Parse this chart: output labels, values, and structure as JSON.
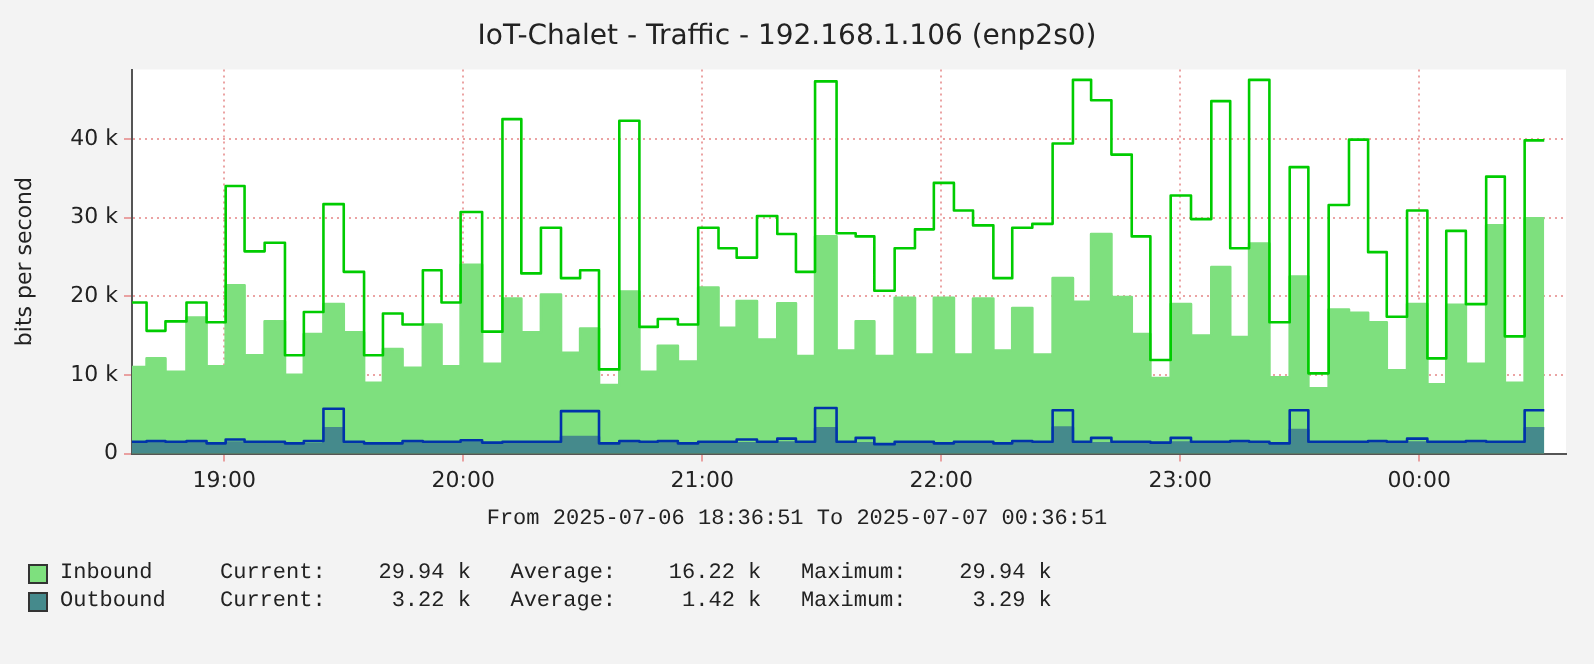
{
  "chart_data": {
    "type": "step",
    "title": "IoT-Chalet - Traffic - 192.168.1.106 (enp2s0)",
    "ylabel": "bits per second",
    "x": [
      18.614,
      18.675,
      18.754,
      18.842,
      18.926,
      19.006,
      19.085,
      19.169,
      19.254,
      19.333,
      19.415,
      19.5,
      19.585,
      19.664,
      19.746,
      19.831,
      19.909,
      19.989,
      20.079,
      20.164,
      20.243,
      20.325,
      20.409,
      20.489,
      20.568,
      20.653,
      20.737,
      20.814,
      20.898,
      20.983,
      21.068,
      21.144,
      21.229,
      21.314,
      21.392,
      21.472,
      21.562,
      21.642,
      21.72,
      21.805,
      21.89,
      21.969,
      22.053,
      22.133,
      22.218,
      22.297,
      22.381,
      22.466,
      22.551,
      22.627,
      22.712,
      22.797,
      22.875,
      22.96,
      23.045,
      23.13,
      23.209,
      23.288,
      23.373,
      23.458,
      23.536,
      23.621,
      23.706,
      23.786,
      23.864,
      23.949,
      24.034,
      24.113,
      24.195,
      24.28,
      24.358,
      24.441,
      24.523
    ],
    "series": [
      {
        "name": "Inbound",
        "type": "area",
        "color": "#7ee07e",
        "x": [
          18.614,
          18.675,
          18.675,
          18.754,
          18.754,
          18.842,
          18.842,
          18.926,
          18.926,
          19.006,
          19.006,
          19.085,
          19.085,
          19.169,
          19.169,
          19.254,
          19.254,
          19.333,
          19.333,
          19.415,
          19.415,
          19.5,
          19.5,
          19.585,
          19.585,
          19.664,
          19.664,
          19.746,
          19.746,
          19.831,
          19.831,
          19.909,
          19.909,
          19.989,
          19.989,
          20.079,
          20.079,
          20.164,
          20.164,
          20.243,
          20.243,
          20.325,
          20.325,
          20.409,
          20.409,
          20.489,
          20.489,
          20.568,
          20.568,
          20.653,
          20.653,
          20.737,
          20.737,
          20.814,
          20.814,
          20.898,
          20.898,
          20.983,
          20.983,
          21.068,
          21.068,
          21.144,
          21.144,
          21.229,
          21.229,
          21.314,
          21.314,
          21.392,
          21.392,
          21.472,
          21.472,
          21.562,
          21.562,
          21.642,
          21.642,
          21.72,
          21.72,
          21.805,
          21.805,
          21.89,
          21.89,
          21.969,
          21.969,
          22.053,
          22.053,
          22.133,
          22.133,
          22.218,
          22.218,
          22.297,
          22.297,
          22.381,
          22.381,
          22.466,
          22.466,
          22.551,
          22.551,
          22.627,
          22.627,
          22.712,
          22.712,
          22.797,
          22.797,
          22.875,
          22.875,
          22.96,
          22.96,
          23.045,
          23.045,
          23.13,
          23.13,
          23.209,
          23.209,
          23.288,
          23.288,
          23.373,
          23.373,
          23.458,
          23.458,
          23.536,
          23.536,
          23.621,
          23.621,
          23.706,
          23.706,
          23.786,
          23.786,
          23.864,
          23.864,
          23.949,
          23.949,
          24.034,
          24.034,
          24.113,
          24.113,
          24.195,
          24.195,
          24.28,
          24.28,
          24.358,
          24.358,
          24.441,
          24.441,
          24.523
        ],
        "values": [
          11000,
          11000,
          12100,
          12100,
          10400,
          10400,
          17300,
          17300,
          11100,
          11100,
          21400,
          21400,
          12500,
          12500,
          16800,
          16800,
          10000,
          10000,
          15200,
          15200,
          19000,
          19000,
          15400,
          15400,
          9000,
          9000,
          13300,
          13300,
          10900,
          10900,
          16400,
          16400,
          11100,
          11100,
          24000,
          24000,
          11400,
          11400,
          19700,
          19700,
          15400,
          15400,
          20200,
          20200,
          12800,
          12800,
          15900,
          15900,
          8700,
          8700,
          20600,
          20600,
          10400,
          10400,
          13700,
          13700,
          11700,
          11700,
          21100,
          21100,
          16000,
          16000,
          19400,
          19400,
          14500,
          14500,
          19100,
          19100,
          12400,
          12400,
          27600,
          27600,
          13100,
          13100,
          16800,
          16800,
          12400,
          12400,
          19800,
          19800,
          12600,
          12600,
          19800,
          19800,
          12600,
          12600,
          19700,
          19700,
          13100,
          13100,
          18500,
          18500,
          12600,
          12600,
          22300,
          22300,
          19300,
          19300,
          27900,
          27900,
          19900,
          19900,
          15200,
          15200,
          9600,
          9600,
          19000,
          19000,
          15000,
          15000,
          23700,
          23700,
          14800,
          14800,
          26700,
          26700,
          9700,
          9700,
          22500,
          22500,
          8300,
          8300,
          18300,
          18300,
          17900,
          17900,
          16700,
          16700,
          10600,
          10600,
          19000,
          19000,
          8800,
          8800,
          18900,
          18900,
          11400,
          11400,
          29000,
          29000,
          9000,
          9000,
          29900,
          29900
        ]
      },
      {
        "color": "#00cc00",
        "values": [
          19200,
          15600,
          16800,
          19200,
          16700,
          34000,
          25700,
          26800,
          12500,
          18000,
          31700,
          23100,
          12500,
          17800,
          16400,
          23300,
          19200,
          30700,
          15500,
          42500,
          22900,
          28700,
          22300,
          23300,
          10700,
          42300,
          16100,
          17100,
          16400,
          28700,
          26100,
          24900,
          30200,
          27900,
          23100,
          47300,
          28000,
          27600,
          20700,
          26100,
          28500,
          34400,
          30900,
          29000,
          22300,
          28700,
          29200,
          39400,
          47500,
          44900,
          38000,
          27600,
          11900,
          32800,
          29800,
          44800,
          26100,
          47500,
          16700,
          36400,
          10200,
          31600,
          39900,
          25600,
          17400,
          30900,
          12100,
          28300,
          19000,
          35200,
          14900,
          39800,
          39800
        ]
      },
      {
        "name": "Outbound",
        "type": "area",
        "color": "#458a8c",
        "x": [
          18.614,
          18.675,
          18.675,
          18.754,
          18.754,
          18.842,
          18.842,
          18.926,
          18.926,
          19.006,
          19.006,
          19.085,
          19.085,
          19.169,
          19.169,
          19.254,
          19.254,
          19.333,
          19.333,
          19.415,
          19.415,
          19.5,
          19.5,
          19.585,
          19.585,
          19.664,
          19.664,
          19.746,
          19.746,
          19.831,
          19.831,
          19.909,
          19.909,
          19.989,
          19.989,
          20.079,
          20.079,
          20.164,
          20.164,
          20.243,
          20.243,
          20.325,
          20.325,
          20.409,
          20.409,
          20.489,
          20.489,
          20.568,
          20.568,
          20.653,
          20.653,
          20.737,
          20.737,
          20.814,
          20.814,
          20.898,
          20.898,
          20.983,
          20.983,
          21.068,
          21.068,
          21.144,
          21.144,
          21.229,
          21.229,
          21.314,
          21.314,
          21.392,
          21.392,
          21.472,
          21.472,
          21.562,
          21.562,
          21.642,
          21.642,
          21.72,
          21.72,
          21.805,
          21.805,
          21.89,
          21.89,
          21.969,
          21.969,
          22.053,
          22.053,
          22.133,
          22.133,
          22.218,
          22.218,
          22.297,
          22.297,
          22.381,
          22.381,
          22.466,
          22.466,
          22.551,
          22.551,
          22.627,
          22.627,
          22.712,
          22.712,
          22.797,
          22.797,
          22.875,
          22.875,
          22.96,
          22.96,
          23.045,
          23.045,
          23.13,
          23.13,
          23.209,
          23.209,
          23.288,
          23.288,
          23.373,
          23.373,
          23.458,
          23.458,
          23.536,
          23.536,
          23.621,
          23.621,
          23.706,
          23.706,
          23.786,
          23.786,
          23.864,
          23.864,
          23.949,
          23.949,
          24.034,
          24.034,
          24.113,
          24.113,
          24.195,
          24.195,
          24.28,
          24.28,
          24.358,
          24.358,
          24.441,
          24.441,
          24.523
        ],
        "values": [
          1200,
          1200,
          1300,
          1300,
          1200,
          1200,
          1300,
          1300,
          1200,
          1200,
          1400,
          1400,
          1200,
          1200,
          1300,
          1300,
          1200,
          1200,
          1200,
          1200,
          3200,
          3200,
          1200,
          1200,
          1200,
          1200,
          1100,
          1100,
          1300,
          1300,
          1200,
          1200,
          1200,
          1200,
          1400,
          1400,
          1200,
          1200,
          1300,
          1300,
          1200,
          1200,
          1200,
          1200,
          2100,
          2100,
          2100,
          2100,
          1200,
          1200,
          1300,
          1300,
          1200,
          1200,
          1300,
          1300,
          1200,
          1200,
          1200,
          1200,
          1200,
          1200,
          1300,
          1300,
          1200,
          1200,
          1400,
          1400,
          1200,
          1200,
          3200,
          3200,
          1200,
          1200,
          1300,
          1300,
          1100,
          1100,
          1200,
          1200,
          1200,
          1200,
          1100,
          1100,
          1200,
          1200,
          1200,
          1200,
          1100,
          1100,
          1300,
          1300,
          1200,
          1200,
          3300,
          3300,
          1200,
          1200,
          1300,
          1300,
          1200,
          1200,
          1200,
          1200,
          1100,
          1100,
          1400,
          1400,
          1200,
          1200,
          1200,
          1200,
          1300,
          1300,
          1200,
          1200,
          1100,
          1100,
          3000,
          3000,
          1200,
          1200,
          1200,
          1200,
          1200,
          1200,
          1300,
          1300,
          1200,
          1200,
          1400,
          1400,
          1200,
          1200,
          1200,
          1200,
          1300,
          1300,
          1200,
          1200,
          1200,
          1200,
          3200,
          3200
        ]
      },
      {
        "color": "#0033aa",
        "values": [
          1500,
          1600,
          1500,
          1600,
          1300,
          1800,
          1500,
          1500,
          1300,
          1600,
          5700,
          1500,
          1300,
          1300,
          1600,
          1500,
          1500,
          1700,
          1400,
          1500,
          1500,
          1500,
          5400,
          5400,
          1300,
          1600,
          1500,
          1600,
          1300,
          1500,
          1500,
          1800,
          1500,
          1900,
          1500,
          5800,
          1500,
          2000,
          1200,
          1500,
          1500,
          1300,
          1500,
          1500,
          1300,
          1600,
          1500,
          5500,
          1500,
          2000,
          1500,
          1500,
          1400,
          2000,
          1500,
          1500,
          1600,
          1500,
          1300,
          5500,
          1500,
          1500,
          1500,
          1600,
          1500,
          1900,
          1500,
          1500,
          1600,
          1500,
          1500,
          5500,
          5500
        ]
      }
    ],
    "xlim": [
      18.614,
      24.614
    ],
    "xticks": [
      {
        "value": 19,
        "label": "19:00"
      },
      {
        "value": 20,
        "label": "20:00"
      },
      {
        "value": 21,
        "label": "21:00"
      },
      {
        "value": 22,
        "label": "22:00"
      },
      {
        "value": 23,
        "label": "23:00"
      },
      {
        "value": 24,
        "label": "00:00"
      }
    ],
    "ylim": [
      0,
      48800
    ],
    "yticks": [
      0,
      {
        "value": 10000,
        "label": "10 k"
      },
      {
        "value": 20000,
        "label": "20 k"
      },
      {
        "value": 30000,
        "label": "30 k"
      },
      {
        "value": 40000,
        "label": "40 k"
      }
    ],
    "grid": true,
    "legend": "bottom",
    "annotations": [
      "From 2025-07-06 18:36:51 To 2025-07-07 00:36:51",
      "Current:    29.94 k   Average:    16.22 k   Maximum:    29.94 k",
      "Current:     3.22 k   Average:     1.42 k   Maximum:     3.29 k"
    ]
  }
}
